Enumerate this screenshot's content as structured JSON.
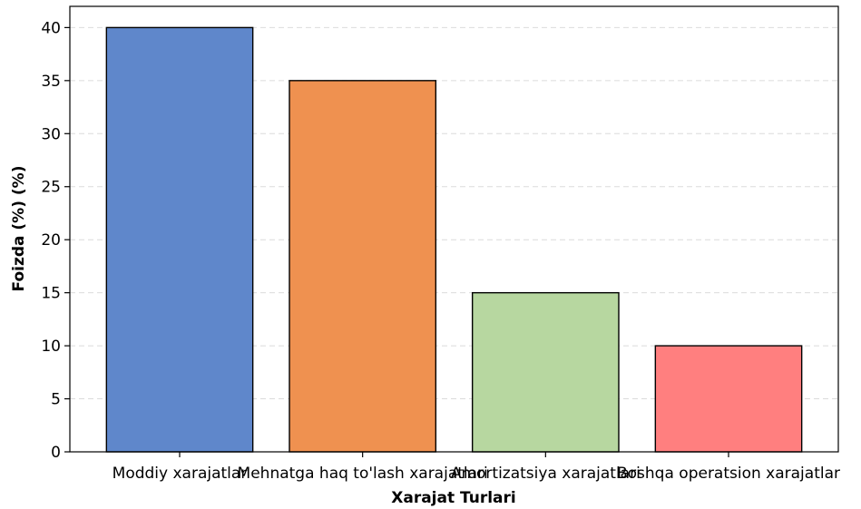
{
  "chart_data": {
    "type": "bar",
    "categories": [
      "Moddiy xarajatlar",
      "Mehnatga haq to'lash xarajatlari",
      "Amortizatsiya xarajatlari",
      "Boshqa operatsion xarajatlar"
    ],
    "values": [
      40,
      35,
      15,
      10
    ],
    "colors": [
      "#5f87cb",
      "#ef9150",
      "#b7d7a0",
      "#ff7f7f"
    ],
    "title": "",
    "xlabel": "Xarajat Turlari",
    "ylabel": "Foizda (%) (%)",
    "ylim": [
      0,
      42
    ],
    "yticks": [
      0,
      5,
      10,
      15,
      20,
      25,
      30,
      35,
      40
    ],
    "grid": true,
    "legend": false
  }
}
